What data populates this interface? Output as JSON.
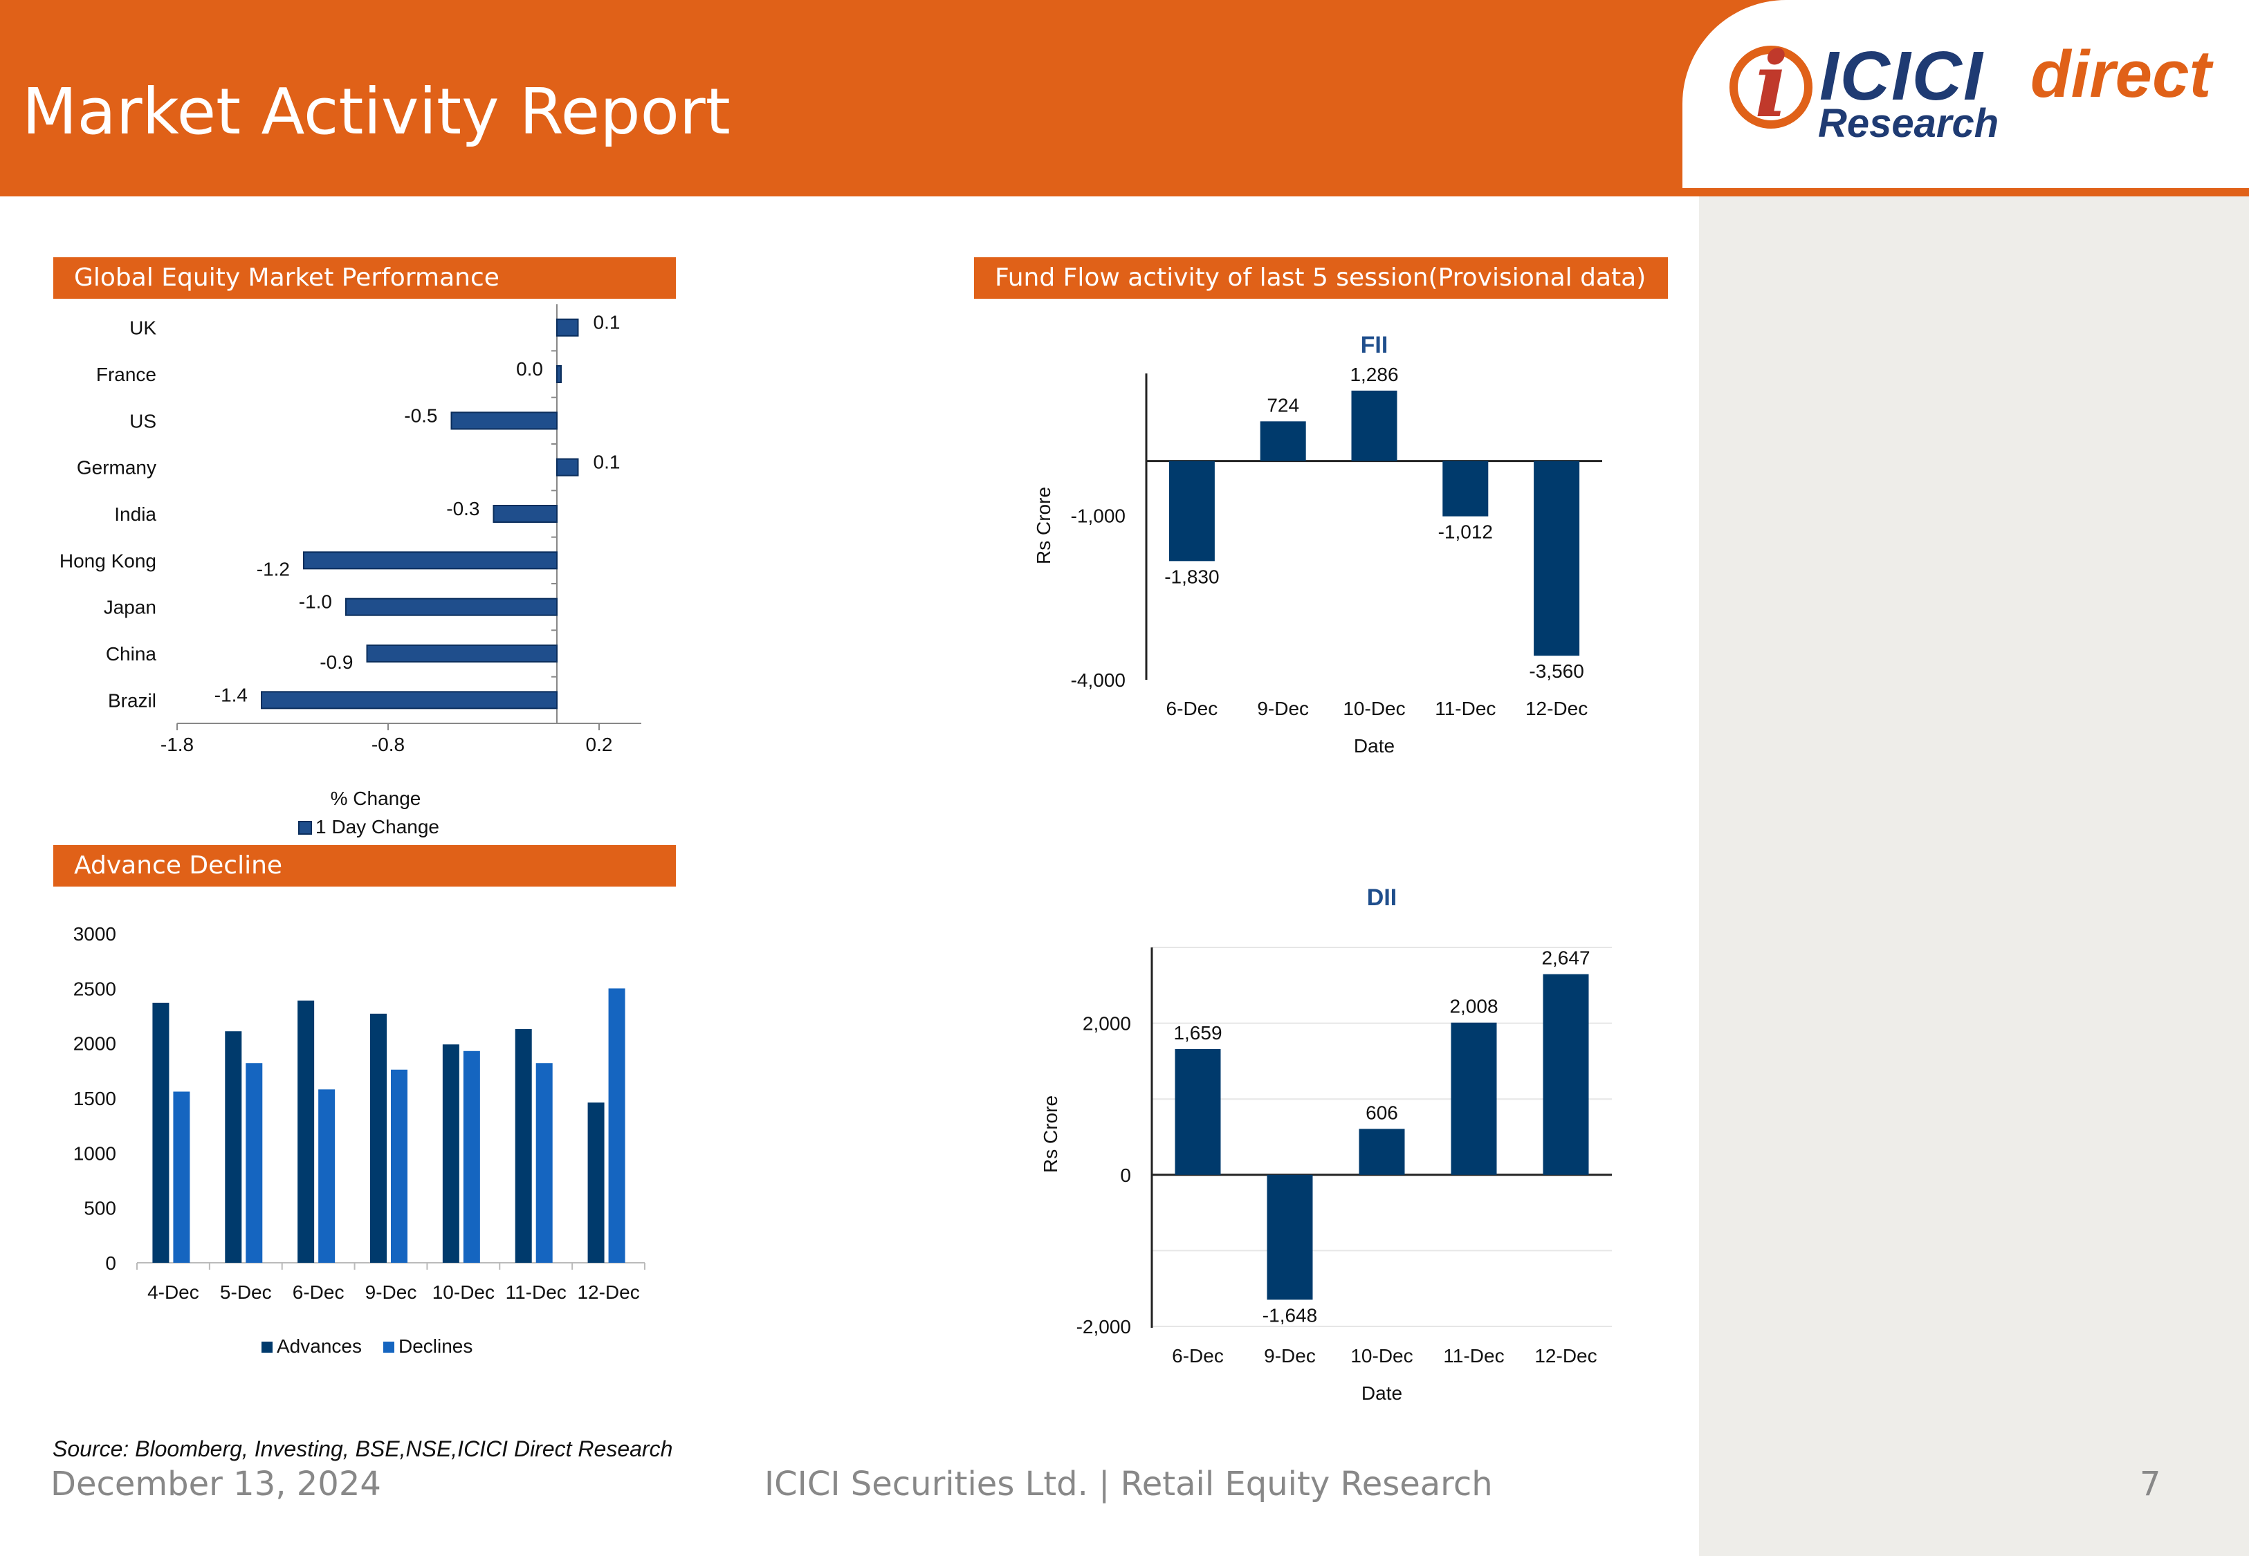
{
  "header": {
    "title": "Market Activity Report"
  },
  "logo": {
    "brand": "ICICI",
    "brand_suffix": "direct",
    "tagline": "Research"
  },
  "sections": {
    "global": "Global Equity Market Performance",
    "fund_flow": "Fund Flow activity of last 5 session(Provisional data)",
    "adv_dec": "Advance Decline"
  },
  "chart_data": [
    {
      "id": "global",
      "type": "bar",
      "orientation": "horizontal",
      "categories": [
        "UK",
        "France",
        "US",
        "Germany",
        "India",
        "Hong Kong",
        "Japan",
        "China",
        "Brazil"
      ],
      "series": [
        {
          "name": "1 Day Change",
          "values": [
            0.1,
            0.0,
            -0.5,
            0.1,
            -0.3,
            -1.2,
            -1.0,
            -0.9,
            -1.4
          ]
        }
      ],
      "xlabel": "% Change",
      "xlim": [
        -1.8,
        0.4
      ],
      "xticks": [
        "-1.8",
        "-0.8",
        "0.2"
      ],
      "legend": "bottom",
      "color": "#1F4E8C"
    },
    {
      "id": "fii",
      "type": "bar",
      "title": "FII",
      "categories": [
        "6-Dec",
        "9-Dec",
        "10-Dec",
        "11-Dec",
        "12-Dec"
      ],
      "values": [
        -1830,
        724,
        1286,
        -1012,
        -3560
      ],
      "labels": [
        "-1,830",
        "724",
        "1,286",
        "-1,012",
        "-3,560"
      ],
      "xlabel": "Date",
      "ylabel": "Rs Crore",
      "ylim": [
        -4000,
        1600
      ],
      "yticks": [
        "-1,000",
        "-4,000"
      ],
      "color": "#003A6C"
    },
    {
      "id": "dii",
      "type": "bar",
      "title": "DII",
      "categories": [
        "6-Dec",
        "9-Dec",
        "10-Dec",
        "11-Dec",
        "12-Dec"
      ],
      "values": [
        1659,
        -1648,
        606,
        2008,
        2647
      ],
      "labels": [
        "1,659",
        "-1,648",
        "606",
        "2,008",
        "2,647"
      ],
      "xlabel": "Date",
      "ylabel": "Rs Crore",
      "ylim": [
        -2000,
        3000
      ],
      "yticks": [
        "2,000",
        "0",
        "-2,000"
      ],
      "grid": true,
      "color": "#003A6C"
    },
    {
      "id": "advdec",
      "type": "bar",
      "categories": [
        "4-Dec",
        "5-Dec",
        "6-Dec",
        "9-Dec",
        "10-Dec",
        "11-Dec",
        "12-Dec"
      ],
      "series": [
        {
          "name": "Advances",
          "values": [
            2370,
            2110,
            2390,
            2270,
            1990,
            2130,
            1460
          ],
          "color": "#003A6C"
        },
        {
          "name": "Declines",
          "values": [
            1560,
            1820,
            1580,
            1760,
            1930,
            1820,
            2500
          ],
          "color": "#1565C0"
        }
      ],
      "ylim": [
        0,
        3000
      ],
      "yticks": [
        "3000",
        "2500",
        "2000",
        "1500",
        "1000",
        "500",
        "0"
      ],
      "legend": "bottom"
    }
  ],
  "footer": {
    "source": "Source: Bloomberg, Investing, BSE,NSE,ICICI Direct Research",
    "date": "December 13, 2024",
    "company": "ICICI Securities Ltd. | Retail Equity Research",
    "page": "7"
  }
}
